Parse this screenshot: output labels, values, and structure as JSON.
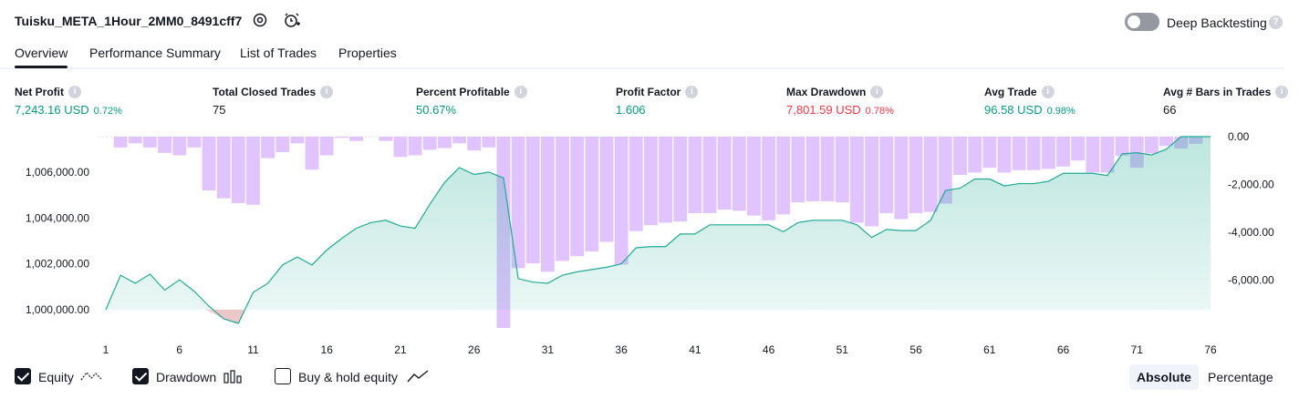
{
  "header": {
    "title": "Tuisku_META_1Hour_2MM0_8491cff7",
    "deep_backtesting_label": "Deep Backtesting",
    "deep_backtesting_on": false
  },
  "tabs": [
    {
      "label": "Overview",
      "active": true
    },
    {
      "label": "Performance Summary",
      "active": false
    },
    {
      "label": "List of Trades",
      "active": false
    },
    {
      "label": "Properties",
      "active": false
    }
  ],
  "metrics": {
    "net_profit": {
      "label": "Net Profit",
      "value": "7,243.16 USD",
      "pct": "0.72%"
    },
    "total_closed_trades": {
      "label": "Total Closed Trades",
      "value": "75"
    },
    "percent_profitable": {
      "label": "Percent Profitable",
      "value": "50.67%"
    },
    "profit_factor": {
      "label": "Profit Factor",
      "value": "1.606"
    },
    "max_drawdown": {
      "label": "Max Drawdown",
      "value": "7,801.59 USD",
      "pct": "0.78%"
    },
    "avg_trade": {
      "label": "Avg Trade",
      "value": "96.58 USD",
      "pct": "0.98%"
    },
    "avg_bars": {
      "label": "Avg # Bars in Trades",
      "value": "66"
    }
  },
  "colors": {
    "positive": "#089981",
    "negative": "#f23645",
    "equity_line": "#22ab94",
    "drawdown_bar": "#d9b3ff"
  },
  "chart_data": {
    "type": "area",
    "x": [
      1,
      2,
      3,
      4,
      5,
      6,
      7,
      8,
      9,
      10,
      11,
      12,
      13,
      14,
      15,
      16,
      17,
      18,
      19,
      20,
      21,
      22,
      23,
      24,
      25,
      26,
      27,
      28,
      29,
      30,
      31,
      32,
      33,
      34,
      35,
      36,
      37,
      38,
      39,
      40,
      41,
      42,
      43,
      44,
      45,
      46,
      47,
      48,
      49,
      50,
      51,
      52,
      53,
      54,
      55,
      56,
      57,
      58,
      59,
      60,
      61,
      62,
      63,
      64,
      65,
      66,
      67,
      68,
      69,
      70,
      71,
      72,
      73,
      74,
      75,
      76
    ],
    "xticks": [
      "1",
      "6",
      "11",
      "16",
      "21",
      "26",
      "31",
      "36",
      "41",
      "46",
      "51",
      "56",
      "61",
      "66",
      "71",
      "76"
    ],
    "series": [
      {
        "values": [
          1000000,
          1001500,
          1001150,
          1001550,
          1000850,
          1001300,
          1000800,
          1000150,
          999600,
          999400,
          1000750,
          1001150,
          1001950,
          1002300,
          1001950,
          1002600,
          1003100,
          1003550,
          1003800,
          1003900,
          1003650,
          1003550,
          1004600,
          1005550,
          1006200,
          1005900,
          1006000,
          1005750,
          1001350,
          1001200,
          1001150,
          1001500,
          1001650,
          1001750,
          1001850,
          1002000,
          1002700,
          1002750,
          1002750,
          1003300,
          1003300,
          1003700,
          1003700,
          1003700,
          1003700,
          1003700,
          1003400,
          1003800,
          1003900,
          1003900,
          1003900,
          1003700,
          1003150,
          1003500,
          1003450,
          1003450,
          1003900,
          1005200,
          1005300,
          1005700,
          1005700,
          1005400,
          1005500,
          1005500,
          1005600,
          1005950,
          1005950,
          1005950,
          1005850,
          1006800,
          1006850,
          1006750,
          1007000,
          1007550,
          1007550,
          1007550
        ]
      },
      {
        "values": [
          0,
          -450,
          -280,
          -450,
          -680,
          -780,
          -450,
          -2250,
          -2580,
          -2780,
          -2850,
          -900,
          -650,
          -280,
          -1380,
          -780,
          -50,
          -180,
          0,
          -180,
          -850,
          -780,
          -550,
          -480,
          -280,
          -580,
          -450,
          -8000,
          -5500,
          -5300,
          -5650,
          -5200,
          -5000,
          -4800,
          -4400,
          -5350,
          -3950,
          -3700,
          -3600,
          -3550,
          -3200,
          -3200,
          -3050,
          -3100,
          -3300,
          -3500,
          -3250,
          -2750,
          -2700,
          -2700,
          -2750,
          -3600,
          -3750,
          -3200,
          -3450,
          -3200,
          -3150,
          -2800,
          -1600,
          -1500,
          -1300,
          -1500,
          -1400,
          -1400,
          -1350,
          -1250,
          -1000,
          -1500,
          -1500,
          -800,
          -1300,
          -700,
          -380,
          -500,
          -300,
          0
        ]
      }
    ],
    "y_left": {
      "ticks": [
        "1,000,000.00",
        "1,002,000.00",
        "1,004,000.00",
        "1,006,000.00"
      ],
      "min": 999200,
      "max": 1007550
    },
    "y_right": {
      "ticks": [
        "0.00",
        "-2,000.00",
        "-4,000.00",
        "-6,000.00"
      ],
      "min": -8000,
      "max": 0
    }
  },
  "footer": {
    "equity": {
      "label": "Equity",
      "checked": true
    },
    "drawdown": {
      "label": "Drawdown",
      "checked": true
    },
    "buy_hold": {
      "label": "Buy & hold equity",
      "checked": false
    },
    "absolute_label": "Absolute",
    "percentage_label": "Percentage"
  }
}
